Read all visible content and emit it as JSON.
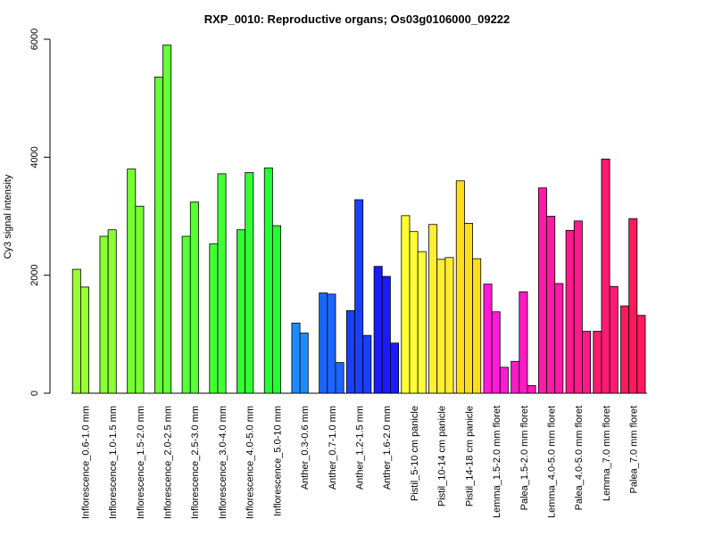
{
  "chart_data": {
    "type": "bar",
    "title": "RXP_0010: Reproductive organs; Os03g0106000_09222",
    "ylabel": "Cy3 signal intensity",
    "xlabel": "",
    "ylim": [
      0,
      6000
    ],
    "yticks": [
      0,
      2000,
      4000,
      6000
    ],
    "grid": false,
    "groups": [
      {
        "label": "Inflorescence_0.6-1.0 mm",
        "color": "#99ff33",
        "values": [
          2100,
          1800
        ]
      },
      {
        "label": "Inflorescence_1.0-1.5 mm",
        "color": "#88ff33",
        "values": [
          2660,
          2770
        ]
      },
      {
        "label": "Inflorescence_1.5-2.0 mm",
        "color": "#77ff33",
        "values": [
          3800,
          3170
        ]
      },
      {
        "label": "Inflorescence_2.0-2.5 mm",
        "color": "#66ff33",
        "values": [
          5360,
          5900
        ]
      },
      {
        "label": "Inflorescence_2.5-3.0 mm",
        "color": "#55ff33",
        "values": [
          2660,
          3240
        ]
      },
      {
        "label": "Inflorescence_3.0-4.0 mm",
        "color": "#44ff33",
        "values": [
          2530,
          3720
        ]
      },
      {
        "label": "Inflorescence_4.0-5.0 mm",
        "color": "#33ff33",
        "values": [
          2770,
          3740
        ]
      },
      {
        "label": "Inflorescence_5.0-10 mm",
        "color": "#22ff33",
        "values": [
          3820,
          2840
        ]
      },
      {
        "label": "Anther_0.3-0.6 mm",
        "color": "#1a8cff",
        "values": [
          1190,
          1020
        ]
      },
      {
        "label": "Anther_0.7-1.0 mm",
        "color": "#1a66ff",
        "values": [
          1700,
          1680,
          520
        ]
      },
      {
        "label": "Anther_1.2-1.5 mm",
        "color": "#1a40ff",
        "values": [
          1400,
          3280,
          980
        ]
      },
      {
        "label": "Anther_1.6-2.0 mm",
        "color": "#1a1aff",
        "values": [
          2150,
          1980,
          850
        ]
      },
      {
        "label": "Pistil_5-10 cm panicle",
        "color": "#ffff33",
        "values": [
          3010,
          2740,
          2400
        ]
      },
      {
        "label": "Pistil_10-14 cm panicle",
        "color": "#ffee33",
        "values": [
          2860,
          2270,
          2300
        ]
      },
      {
        "label": "Pistil_14-18 cm panicle",
        "color": "#ffdd1a",
        "values": [
          3600,
          2880,
          2280
        ]
      },
      {
        "label": "Lemma_1.5-2.0 mm floret",
        "color": "#ff1ad9",
        "values": [
          1850,
          1380,
          440
        ]
      },
      {
        "label": "Palea_1.5-2.0 mm floret",
        "color": "#ff1ac6",
        "values": [
          540,
          1720,
          130
        ]
      },
      {
        "label": "Lemma_4.0-5.0 mm floret",
        "color": "#ff1aa6",
        "values": [
          3480,
          3000,
          1860
        ]
      },
      {
        "label": "Palea_4.0-5.0 mm floret",
        "color": "#ff1a8c",
        "values": [
          2760,
          2920,
          1050
        ]
      },
      {
        "label": "Lemma_7.0 mm floret",
        "color": "#ff1a73",
        "values": [
          1050,
          3970,
          1810
        ]
      },
      {
        "label": "Palea_7.0 mm floret",
        "color": "#ff1a5e",
        "values": [
          1480,
          2960,
          1320
        ]
      }
    ]
  }
}
